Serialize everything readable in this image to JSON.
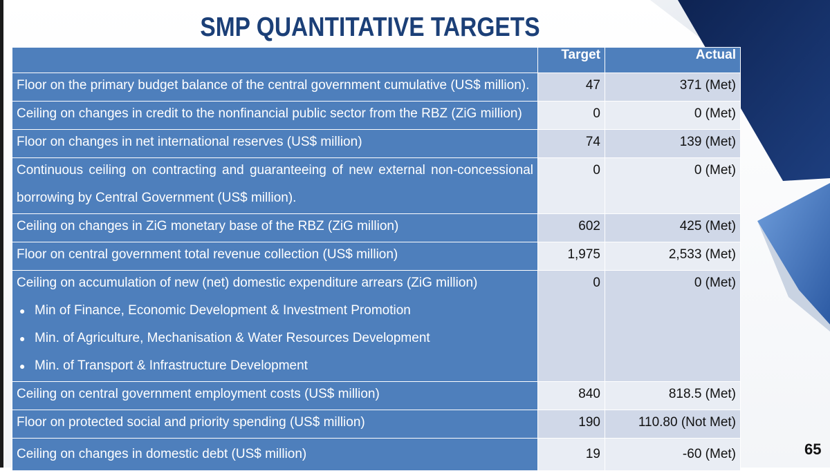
{
  "slide": {
    "title": "SMP QUANTITATIVE TARGETS",
    "page_number": "65"
  },
  "table": {
    "headers": {
      "label": "",
      "target": "Target",
      "actual": "Actual"
    },
    "rows": [
      {
        "lines": [
          "Floor on the primary budget balance of the central government cumulative (US$ million)."
        ],
        "target": "47",
        "actual": "371 (Met)"
      },
      {
        "lines": [
          "Ceiling on changes in credit to the nonfinancial public sector from the RBZ (ZiG million)"
        ],
        "target": "0",
        "actual": "0 (Met)"
      },
      {
        "lines": [
          "Floor on changes in net international reserves (US$ million)"
        ],
        "target": "74",
        "actual": "139 (Met)"
      },
      {
        "lines": [
          "Continuous ceiling on contracting and guaranteeing of new external non-concessional",
          "borrowing by Central Government (US$ million)."
        ],
        "target": "0",
        "actual": "0 (Met)"
      },
      {
        "lines": [
          "Ceiling on changes in ZiG monetary base of the RBZ (ZiG million)"
        ],
        "target": "602",
        "actual": "425 (Met)"
      },
      {
        "lines": [
          "Floor on central government total revenue collection (US$ million)"
        ],
        "target": "1,975",
        "actual": "2,533 (Met)"
      },
      {
        "lines": [
          "Ceiling on accumulation of new (net) domestic expenditure arrears (ZiG million)"
        ],
        "bullets": [
          "Min of Finance, Economic Development & Investment Promotion",
          "Min. of Agriculture, Mechanisation & Water Resources Development",
          "Min. of Transport & Infrastructure Development"
        ],
        "target": "0",
        "actual": "0 (Met)"
      },
      {
        "lines": [
          "Ceiling on central government employment costs (US$ million)"
        ],
        "target": "840",
        "actual": "818.5 (Met)"
      },
      {
        "lines": [
          "Floor on protected social and priority spending (US$ million)"
        ],
        "target": "190",
        "actual": "110.80 (Not Met)"
      },
      {
        "lines": [
          "Ceiling on changes in domestic debt (US$ million)"
        ],
        "target": "19",
        "actual": "-60 (Met)"
      }
    ]
  },
  "colors": {
    "header_blue": "#4e7fbc",
    "title_blue": "#1b3f77",
    "band_dark": "#d0d8e8",
    "band_light": "#e9edf4",
    "deco_navy": "#12295a"
  }
}
